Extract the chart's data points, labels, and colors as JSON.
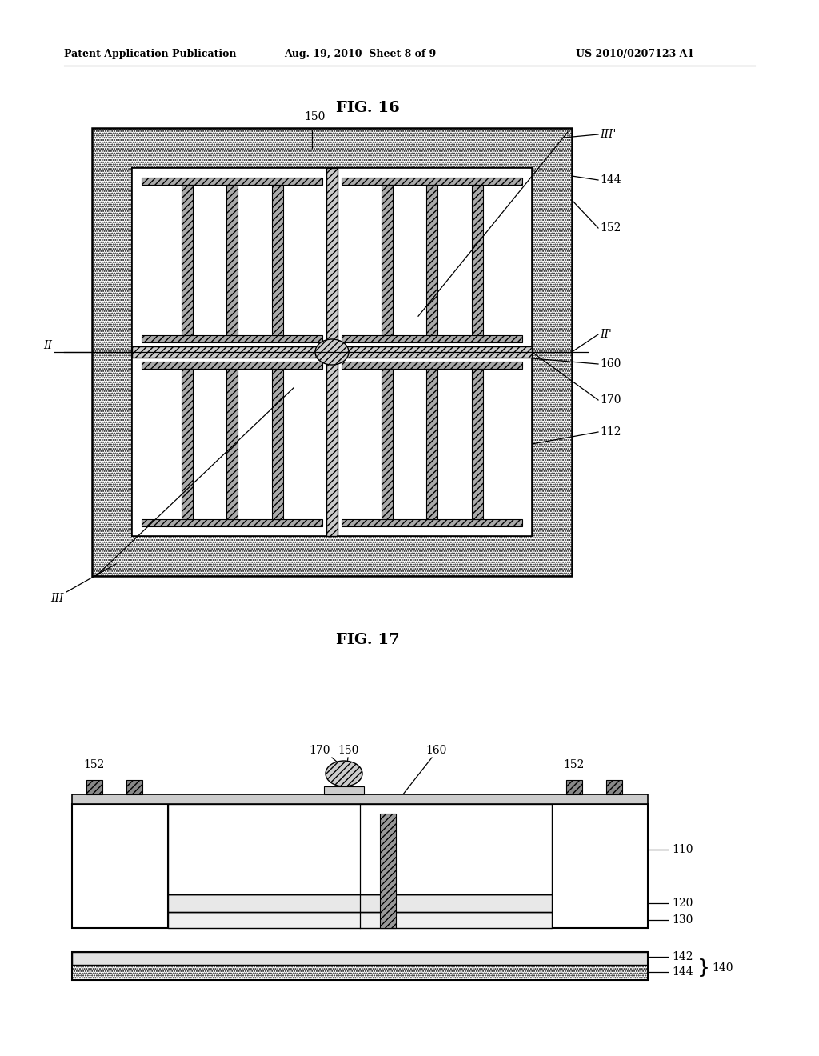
{
  "bg_color": "#ffffff",
  "header_left": "Patent Application Publication",
  "header_mid": "Aug. 19, 2010  Sheet 8 of 9",
  "header_right": "US 2010/0207123 A1",
  "fig16_title": "FIG. 16",
  "fig17_title": "FIG. 17",
  "line_color": "#000000"
}
